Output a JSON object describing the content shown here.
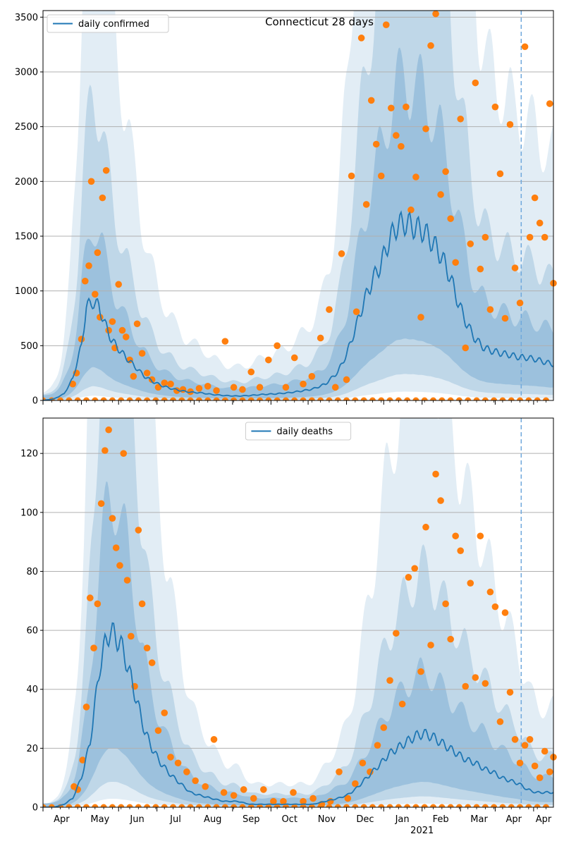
{
  "colors": {
    "line": "#1f77b4",
    "points": "#ff7f0e",
    "band": "#1f77b4",
    "grid": "#b0b0b0",
    "vline": "#6fa8dc"
  },
  "x_axis": {
    "month_labels": [
      "Apr",
      "May",
      "Jun",
      "Jul",
      "Aug",
      "Sep",
      "Oct",
      "Nov",
      "Dec",
      "Jan",
      "Feb",
      "Mar",
      "Apr"
    ],
    "year_label": "2021"
  },
  "chart_data": [
    {
      "type": "line",
      "title": "Connecticut 28 days",
      "legend": "daily confirmed",
      "legend_position": "top-left",
      "grid": true,
      "x_range": [
        "2020-03-01",
        "2021-04-17"
      ],
      "forecast_start": "2021-03-22",
      "ylim": [
        0,
        3560
      ],
      "yticks": [
        0,
        500,
        1000,
        1500,
        2000,
        2500,
        3000,
        3500
      ],
      "line": {
        "name": "daily confirmed",
        "dates": [
          "2020-03-01",
          "2020-03-10",
          "2020-03-18",
          "2020-03-25",
          "2020-04-01",
          "2020-04-05",
          "2020-04-10",
          "2020-04-15",
          "2020-04-20",
          "2020-04-25",
          "2020-05-01",
          "2020-05-08",
          "2020-05-15",
          "2020-05-22",
          "2020-05-29",
          "2020-06-05",
          "2020-06-12",
          "2020-06-20",
          "2020-06-28",
          "2020-07-06",
          "2020-07-15",
          "2020-07-25",
          "2020-08-05",
          "2020-08-15",
          "2020-08-25",
          "2020-09-05",
          "2020-09-15",
          "2020-09-25",
          "2020-10-05",
          "2020-10-15",
          "2020-10-25",
          "2020-11-01",
          "2020-11-08",
          "2020-11-15",
          "2020-11-22",
          "2020-11-29",
          "2020-12-05",
          "2020-12-12",
          "2020-12-19",
          "2020-12-26",
          "2021-01-02",
          "2021-01-09",
          "2021-01-16",
          "2021-01-23",
          "2021-01-30",
          "2021-02-06",
          "2021-02-13",
          "2021-02-20",
          "2021-02-27",
          "2021-03-06",
          "2021-03-13",
          "2021-03-20",
          "2021-03-27",
          "2021-04-03",
          "2021-04-10",
          "2021-04-17"
        ],
        "values": [
          0,
          15,
          60,
          200,
          500,
          850,
          900,
          860,
          700,
          560,
          470,
          380,
          300,
          220,
          170,
          135,
          110,
          90,
          75,
          70,
          55,
          45,
          40,
          45,
          55,
          60,
          70,
          85,
          105,
          150,
          260,
          420,
          650,
          900,
          1100,
          1250,
          1450,
          1600,
          1620,
          1580,
          1550,
          1450,
          1330,
          1150,
          900,
          700,
          560,
          480,
          450,
          430,
          415,
          395,
          390,
          375,
          350,
          330
        ]
      },
      "points": {
        "name": "observed",
        "dates": [
          "2020-03-25",
          "2020-03-28",
          "2020-04-01",
          "2020-04-04",
          "2020-04-07",
          "2020-04-09",
          "2020-04-12",
          "2020-04-14",
          "2020-04-16",
          "2020-04-18",
          "2020-04-21",
          "2020-04-23",
          "2020-04-26",
          "2020-04-28",
          "2020-05-01",
          "2020-05-04",
          "2020-05-07",
          "2020-05-10",
          "2020-05-13",
          "2020-05-16",
          "2020-05-20",
          "2020-05-24",
          "2020-05-28",
          "2020-06-02",
          "2020-06-07",
          "2020-06-12",
          "2020-06-17",
          "2020-06-22",
          "2020-06-28",
          "2020-07-05",
          "2020-07-12",
          "2020-07-19",
          "2020-07-26",
          "2020-08-02",
          "2020-08-09",
          "2020-08-16",
          "2020-08-23",
          "2020-08-30",
          "2020-09-06",
          "2020-09-13",
          "2020-09-20",
          "2020-09-27",
          "2020-10-04",
          "2020-10-11",
          "2020-10-18",
          "2020-10-23",
          "2020-10-28",
          "2020-11-01",
          "2020-11-05",
          "2020-11-09",
          "2020-11-13",
          "2020-11-17",
          "2020-11-21",
          "2020-11-25",
          "2020-11-29",
          "2020-12-03",
          "2020-12-07",
          "2020-12-11",
          "2020-12-15",
          "2020-12-19",
          "2020-12-23",
          "2020-12-27",
          "2020-12-31",
          "2021-01-04",
          "2021-01-08",
          "2021-01-12",
          "2021-01-16",
          "2021-01-20",
          "2021-01-24",
          "2021-01-28",
          "2021-02-01",
          "2021-02-05",
          "2021-02-09",
          "2021-02-13",
          "2021-02-17",
          "2021-02-21",
          "2021-02-25",
          "2021-03-01",
          "2021-03-05",
          "2021-03-09",
          "2021-03-13",
          "2021-03-17",
          "2021-03-21",
          "2021-03-25",
          "2021-03-29",
          "2021-04-02",
          "2021-04-06",
          "2021-04-10",
          "2021-04-14",
          "2021-04-17"
        ],
        "values": [
          150,
          250,
          560,
          1090,
          1230,
          2000,
          970,
          1350,
          760,
          1850,
          2100,
          640,
          720,
          480,
          1060,
          640,
          580,
          370,
          220,
          700,
          430,
          250,
          190,
          120,
          160,
          150,
          90,
          100,
          80,
          110,
          130,
          90,
          540,
          120,
          100,
          260,
          120,
          370,
          500,
          120,
          390,
          150,
          220,
          570,
          830,
          120,
          1340,
          190,
          2050,
          810,
          3310,
          1790,
          2740,
          2340,
          2050,
          3430,
          2670,
          2420,
          2320,
          2680,
          1740,
          2040,
          760,
          2480,
          3240,
          3530,
          1880,
          2090,
          1660,
          1260,
          2570,
          480,
          1430,
          2900,
          1200,
          1490,
          830,
          2680,
          2070,
          750,
          2520,
          1210,
          890,
          3230,
          1490,
          1850,
          1620,
          1490,
          2710,
          1070
        ]
      },
      "zero_points": {
        "start": "2020-03-01",
        "end": "2021-04-17",
        "step_days": 7
      }
    },
    {
      "type": "line",
      "title": "",
      "legend": "daily deaths",
      "legend_position": "top-center",
      "grid": true,
      "x_range": [
        "2020-03-01",
        "2021-04-17"
      ],
      "forecast_start": "2021-03-22",
      "ylim": [
        0,
        132
      ],
      "yticks": [
        0,
        20,
        40,
        60,
        80,
        100,
        120
      ],
      "line": {
        "name": "daily deaths",
        "dates": [
          "2020-03-01",
          "2020-03-10",
          "2020-03-18",
          "2020-03-25",
          "2020-04-01",
          "2020-04-08",
          "2020-04-12",
          "2020-04-16",
          "2020-04-20",
          "2020-04-24",
          "2020-04-28",
          "2020-05-02",
          "2020-05-07",
          "2020-05-12",
          "2020-05-17",
          "2020-05-22",
          "2020-05-28",
          "2020-06-04",
          "2020-06-12",
          "2020-06-20",
          "2020-06-28",
          "2020-07-06",
          "2020-07-15",
          "2020-07-25",
          "2020-08-05",
          "2020-08-15",
          "2020-08-25",
          "2020-09-05",
          "2020-09-15",
          "2020-09-25",
          "2020-10-05",
          "2020-10-15",
          "2020-10-25",
          "2020-11-01",
          "2020-11-08",
          "2020-11-15",
          "2020-11-22",
          "2020-11-29",
          "2020-12-05",
          "2020-12-12",
          "2020-12-19",
          "2020-12-26",
          "2021-01-02",
          "2021-01-09",
          "2021-01-16",
          "2021-01-23",
          "2021-01-30",
          "2021-02-06",
          "2021-02-13",
          "2021-02-20",
          "2021-02-27",
          "2021-03-06",
          "2021-03-13",
          "2021-03-20",
          "2021-03-27",
          "2021-04-03",
          "2021-04-10",
          "2021-04-17"
        ],
        "values": [
          0,
          0,
          1,
          3,
          10,
          22,
          35,
          48,
          55,
          60,
          58,
          56,
          50,
          42,
          34,
          26,
          20,
          15,
          11,
          8,
          5,
          4,
          3,
          2,
          2,
          1,
          1,
          1,
          1,
          1,
          1,
          2,
          3,
          4,
          6,
          9,
          12,
          15,
          18,
          20,
          22,
          24,
          25,
          24,
          22,
          20,
          18,
          16,
          15,
          13,
          12,
          10,
          9,
          8,
          6,
          5,
          5,
          5
        ]
      },
      "points": {
        "name": "observed",
        "dates": [
          "2020-03-26",
          "2020-03-29",
          "2020-04-02",
          "2020-04-05",
          "2020-04-08",
          "2020-04-11",
          "2020-04-14",
          "2020-04-17",
          "2020-04-20",
          "2020-04-23",
          "2020-04-26",
          "2020-04-29",
          "2020-05-02",
          "2020-05-05",
          "2020-05-08",
          "2020-05-11",
          "2020-05-14",
          "2020-05-17",
          "2020-05-20",
          "2020-05-24",
          "2020-05-28",
          "2020-06-02",
          "2020-06-07",
          "2020-06-12",
          "2020-06-18",
          "2020-06-25",
          "2020-07-02",
          "2020-07-10",
          "2020-07-17",
          "2020-07-25",
          "2020-08-02",
          "2020-08-10",
          "2020-08-18",
          "2020-08-26",
          "2020-09-03",
          "2020-09-11",
          "2020-09-19",
          "2020-09-27",
          "2020-10-05",
          "2020-10-12",
          "2020-10-19",
          "2020-10-26",
          "2020-11-02",
          "2020-11-08",
          "2020-11-14",
          "2020-11-20",
          "2020-11-26",
          "2020-12-01",
          "2020-12-06",
          "2020-12-11",
          "2020-12-16",
          "2020-12-21",
          "2020-12-26",
          "2020-12-31",
          "2021-01-04",
          "2021-01-08",
          "2021-01-12",
          "2021-01-16",
          "2021-01-20",
          "2021-01-24",
          "2021-01-28",
          "2021-02-01",
          "2021-02-05",
          "2021-02-09",
          "2021-02-13",
          "2021-02-17",
          "2021-02-21",
          "2021-02-25",
          "2021-03-01",
          "2021-03-05",
          "2021-03-09",
          "2021-03-13",
          "2021-03-17",
          "2021-03-21",
          "2021-03-25",
          "2021-03-29",
          "2021-04-02",
          "2021-04-06",
          "2021-04-10",
          "2021-04-14",
          "2021-04-17"
        ],
        "values": [
          7,
          6,
          16,
          34,
          71,
          54,
          69,
          103,
          121,
          128,
          98,
          88,
          82,
          120,
          77,
          58,
          41,
          94,
          69,
          54,
          49,
          26,
          32,
          17,
          15,
          12,
          9,
          7,
          23,
          5,
          4,
          6,
          3,
          6,
          2,
          2,
          5,
          2,
          3,
          1,
          2,
          12,
          3,
          8,
          15,
          12,
          21,
          27,
          43,
          59,
          35,
          78,
          81,
          46,
          95,
          55,
          113,
          104,
          69,
          57,
          92,
          87,
          41,
          76,
          44,
          92,
          42,
          73,
          68,
          29,
          66,
          39,
          23,
          15,
          21,
          23,
          14,
          10,
          19,
          12,
          17
        ]
      },
      "zero_points": {
        "start": "2020-03-01",
        "end": "2021-04-17",
        "step_days": 7
      }
    }
  ]
}
